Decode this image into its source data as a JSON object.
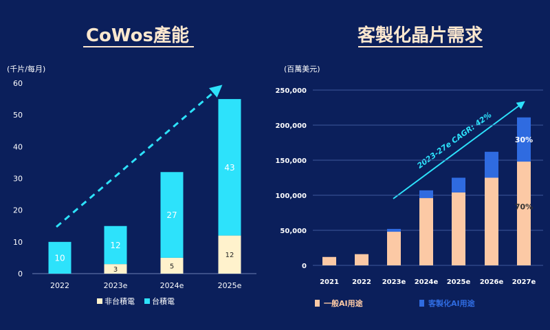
{
  "chart_data": [
    {
      "type": "bar",
      "stacked": true,
      "title": "CoWos產能",
      "unit_label": "(千片/每月)",
      "categories": [
        "2022",
        "2023e",
        "2024e",
        "2025e"
      ],
      "series": [
        {
          "name": "非台積電",
          "values": [
            0,
            3,
            5,
            12
          ],
          "color": "#fff2cc"
        },
        {
          "name": "台積電",
          "values": [
            10,
            12,
            27,
            43
          ],
          "color": "#2de2fb"
        }
      ],
      "ylim": [
        0,
        60
      ],
      "yticks": [
        0,
        10,
        20,
        30,
        40,
        50,
        60
      ],
      "legend_position": "bottom",
      "grid": false
    },
    {
      "type": "bar",
      "stacked": true,
      "title": "客製化晶片需求",
      "unit_label": "(百萬美元)",
      "categories": [
        "2021",
        "2022",
        "2023e",
        "2024e",
        "2025e",
        "2026e",
        "2027e"
      ],
      "series": [
        {
          "name": "一般AI用途",
          "values": [
            12000,
            16000,
            48000,
            96000,
            104000,
            125000,
            148000
          ],
          "color": "#fcc9a5"
        },
        {
          "name": "客製化AI用途",
          "values": [
            0,
            0,
            4000,
            11000,
            21000,
            37000,
            63000
          ],
          "color": "#2f6be0"
        }
      ],
      "ylim": [
        0,
        250000
      ],
      "yticks": [
        "0",
        "50,000",
        "100,000",
        "150,000",
        "200,000",
        "250,000"
      ],
      "annotations": [
        "2023-27e CAGR: 42%",
        "30%",
        "70%"
      ],
      "legend_position": "bottom",
      "grid": true
    }
  ]
}
